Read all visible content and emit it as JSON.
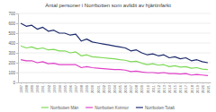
{
  "chart_data": {
    "type": "line",
    "title": "Antal personer i Norrbotten som avlidit av hjärtinfarkt",
    "categories": [
      "1987",
      "1988",
      "1989",
      "1990",
      "1991",
      "1992",
      "1993",
      "1994",
      "1995",
      "1996",
      "1997",
      "1998",
      "1999",
      "2000",
      "2001",
      "2002",
      "2003",
      "2004",
      "2005",
      "2006",
      "2007",
      "2008",
      "2009",
      "2010",
      "2011",
      "2012",
      "2013",
      "2014",
      "2015",
      "2016",
      "2017",
      "2018",
      "2019",
      "2020",
      "2021"
    ],
    "series": [
      {
        "name": "Norrbotten Män",
        "color": "#7ed957",
        "values": [
          370,
          350,
          360,
          340,
          350,
          330,
          335,
          320,
          320,
          300,
          310,
          270,
          280,
          260,
          255,
          250,
          245,
          240,
          230,
          225,
          210,
          215,
          195,
          180,
          190,
          175,
          180,
          160,
          170,
          155,
          160,
          145,
          150,
          135,
          130
        ]
      },
      {
        "name": "Norrbotten Kvinnor",
        "color": "#e040c8",
        "values": [
          230,
          220,
          220,
          200,
          210,
          190,
          195,
          180,
          180,
          180,
          180,
          150,
          160,
          150,
          145,
          140,
          135,
          130,
          130,
          125,
          110,
          115,
          105,
          100,
          100,
          95,
          100,
          90,
          90,
          85,
          90,
          75,
          80,
          75,
          70
        ]
      },
      {
        "name": "Norrbotten Totalt",
        "color": "#1f2d6e",
        "values": [
          600,
          570,
          580,
          540,
          560,
          520,
          530,
          500,
          500,
          480,
          490,
          420,
          440,
          410,
          400,
          390,
          380,
          370,
          360,
          350,
          320,
          330,
          300,
          280,
          290,
          270,
          280,
          250,
          260,
          240,
          250,
          220,
          230,
          210,
          200
        ]
      }
    ],
    "ylim": [
      0,
      700
    ],
    "yticks": [
      0,
      100,
      200,
      300,
      400,
      500,
      600,
      700
    ],
    "grid": true,
    "legend": "bottom"
  }
}
